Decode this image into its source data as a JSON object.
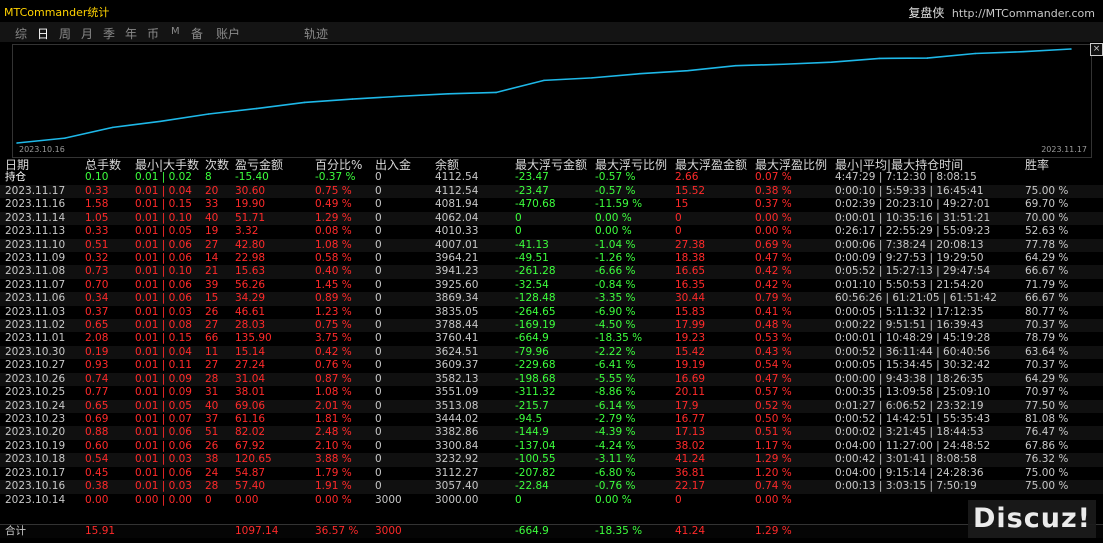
{
  "app_title": "MTCommander统计",
  "brand": {
    "cn": "复盘侠",
    "url": "http://MTCommander.com"
  },
  "tabs": [
    {
      "label": "综",
      "active": false
    },
    {
      "label": "日",
      "active": true
    },
    {
      "label": "周",
      "active": false
    },
    {
      "label": "月",
      "active": false
    },
    {
      "label": "季",
      "active": false
    },
    {
      "label": "年",
      "active": false
    },
    {
      "label": "币",
      "active": false
    },
    {
      "label": "M",
      "active": false
    },
    {
      "label": "备",
      "active": false
    },
    {
      "label": "账户",
      "active": false
    },
    {
      "label": "轨迹",
      "active": false
    }
  ],
  "chart_data": {
    "type": "line",
    "x_start": "2023.10.16",
    "x_end": "2023.11.17",
    "line_color": "#1eb8e8",
    "x": [
      "2023.10.16",
      "2023.10.17",
      "2023.10.18",
      "2023.10.19",
      "2023.10.20",
      "2023.10.23",
      "2023.10.24",
      "2023.10.25",
      "2023.10.26",
      "2023.10.27",
      "2023.10.30",
      "2023.11.01",
      "2023.11.02",
      "2023.11.03",
      "2023.11.06",
      "2023.11.07",
      "2023.11.08",
      "2023.11.09",
      "2023.11.10",
      "2023.11.13",
      "2023.11.14",
      "2023.11.16",
      "2023.11.17"
    ],
    "values": [
      3057.4,
      3112.27,
      3232.92,
      3300.84,
      3382.86,
      3444.02,
      3513.08,
      3551.09,
      3582.13,
      3609.37,
      3624.51,
      3760.41,
      3788.44,
      3835.05,
      3869.34,
      3925.6,
      3941.23,
      3964.21,
      4007.01,
      4010.33,
      4062.04,
      4081.94,
      4112.54
    ],
    "grid": false
  },
  "table": {
    "headers": [
      "日期",
      "总手数",
      "最小|大手数",
      "次数",
      "盈亏金额",
      "百分比%",
      "出入金",
      "余额",
      "最大浮亏金额",
      "最大浮亏比例",
      "最大浮盈金额",
      "最大浮盈比例",
      "最小|平均|最大持仓时间",
      "胜率"
    ],
    "holding": {
      "date": "持仓",
      "total": "0.10",
      "minmax": "0.01 | 0.02",
      "count": "8",
      "profit": "-15.40",
      "pct": "-0.37 %",
      "io": "0",
      "balance": "4112.54",
      "fl": "-23.47",
      "flp": "-0.57 %",
      "fp": "2.66",
      "fpp": "0.07 %",
      "time": "4:47:29 | 7:12:30 | 8:08:15",
      "win": ""
    },
    "rows": [
      {
        "date": "2023.11.17",
        "total": "0.33",
        "minmax": "0.01 | 0.04",
        "count": "20",
        "profit": "30.60",
        "pct": "0.75 %",
        "io": "0",
        "balance": "4112.54",
        "fl": "-23.47",
        "flp": "-0.57 %",
        "fp": "15.52",
        "fpp": "0.38 %",
        "time": "0:00:10 | 5:59:33 | 16:45:41",
        "win": "75.00 %"
      },
      {
        "date": "2023.11.16",
        "total": "1.58",
        "minmax": "0.01 | 0.15",
        "count": "33",
        "profit": "19.90",
        "pct": "0.49 %",
        "io": "0",
        "balance": "4081.94",
        "fl": "-470.68",
        "flp": "-11.59 %",
        "fp": "15",
        "fpp": "0.37 %",
        "time": "0:02:39 | 20:23:10 | 49:27:01",
        "win": "69.70 %"
      },
      {
        "date": "2023.11.14",
        "total": "1.05",
        "minmax": "0.01 | 0.10",
        "count": "40",
        "profit": "51.71",
        "pct": "1.29 %",
        "io": "0",
        "balance": "4062.04",
        "fl": "0",
        "flp": "0.00 %",
        "fp": "0",
        "fpp": "0.00 %",
        "time": "0:00:01 | 10:35:16 | 31:51:21",
        "win": "70.00 %"
      },
      {
        "date": "2023.11.13",
        "total": "0.33",
        "minmax": "0.01 | 0.05",
        "count": "19",
        "profit": "3.32",
        "pct": "0.08 %",
        "io": "0",
        "balance": "4010.33",
        "fl": "0",
        "flp": "0.00 %",
        "fp": "0",
        "fpp": "0.00 %",
        "time": "0:26:17 | 22:55:29 | 55:09:23",
        "win": "52.63 %"
      },
      {
        "date": "2023.11.10",
        "total": "0.51",
        "minmax": "0.01 | 0.06",
        "count": "27",
        "profit": "42.80",
        "pct": "1.08 %",
        "io": "0",
        "balance": "4007.01",
        "fl": "-41.13",
        "flp": "-1.04 %",
        "fp": "27.38",
        "fpp": "0.69 %",
        "time": "0:00:06 | 7:38:24 | 20:08:13",
        "win": "77.78 %"
      },
      {
        "date": "2023.11.09",
        "total": "0.32",
        "minmax": "0.01 | 0.06",
        "count": "14",
        "profit": "22.98",
        "pct": "0.58 %",
        "io": "0",
        "balance": "3964.21",
        "fl": "-49.51",
        "flp": "-1.26 %",
        "fp": "18.38",
        "fpp": "0.47 %",
        "time": "0:00:09 | 9:27:53 | 19:29:50",
        "win": "64.29 %"
      },
      {
        "date": "2023.11.08",
        "total": "0.73",
        "minmax": "0.01 | 0.10",
        "count": "21",
        "profit": "15.63",
        "pct": "0.40 %",
        "io": "0",
        "balance": "3941.23",
        "fl": "-261.28",
        "flp": "-6.66 %",
        "fp": "16.65",
        "fpp": "0.42 %",
        "time": "0:05:52 | 15:27:13 | 29:47:54",
        "win": "66.67 %"
      },
      {
        "date": "2023.11.07",
        "total": "0.70",
        "minmax": "0.01 | 0.06",
        "count": "39",
        "profit": "56.26",
        "pct": "1.45 %",
        "io": "0",
        "balance": "3925.60",
        "fl": "-32.54",
        "flp": "-0.84 %",
        "fp": "16.35",
        "fpp": "0.42 %",
        "time": "0:01:10 | 5:50:53 | 21:54:20",
        "win": "71.79 %"
      },
      {
        "date": "2023.11.06",
        "total": "0.34",
        "minmax": "0.01 | 0.06",
        "count": "15",
        "profit": "34.29",
        "pct": "0.89 %",
        "io": "0",
        "balance": "3869.34",
        "fl": "-128.48",
        "flp": "-3.35 %",
        "fp": "30.44",
        "fpp": "0.79 %",
        "time": "60:56:26 | 61:21:05 | 61:51:42",
        "win": "66.67 %"
      },
      {
        "date": "2023.11.03",
        "total": "0.37",
        "minmax": "0.01 | 0.03",
        "count": "26",
        "profit": "46.61",
        "pct": "1.23 %",
        "io": "0",
        "balance": "3835.05",
        "fl": "-264.65",
        "flp": "-6.90 %",
        "fp": "15.83",
        "fpp": "0.41 %",
        "time": "0:00:05 | 5:11:32 | 17:12:35",
        "win": "80.77 %"
      },
      {
        "date": "2023.11.02",
        "total": "0.65",
        "minmax": "0.01 | 0.08",
        "count": "27",
        "profit": "28.03",
        "pct": "0.75 %",
        "io": "0",
        "balance": "3788.44",
        "fl": "-169.19",
        "flp": "-4.50 %",
        "fp": "17.99",
        "fpp": "0.48 %",
        "time": "0:00:22 | 9:51:51 | 16:39:43",
        "win": "70.37 %"
      },
      {
        "date": "2023.11.01",
        "total": "2.08",
        "minmax": "0.01 | 0.15",
        "count": "66",
        "profit": "135.90",
        "pct": "3.75 %",
        "io": "0",
        "balance": "3760.41",
        "fl": "-664.9",
        "flp": "-18.35 %",
        "fp": "19.23",
        "fpp": "0.53 %",
        "time": "0:00:01 | 10:48:29 | 45:19:28",
        "win": "78.79 %"
      },
      {
        "date": "2023.10.30",
        "total": "0.19",
        "minmax": "0.01 | 0.04",
        "count": "11",
        "profit": "15.14",
        "pct": "0.42 %",
        "io": "0",
        "balance": "3624.51",
        "fl": "-79.96",
        "flp": "-2.22 %",
        "fp": "15.42",
        "fpp": "0.43 %",
        "time": "0:00:52 | 36:11:44 | 60:40:56",
        "win": "63.64 %"
      },
      {
        "date": "2023.10.27",
        "total": "0.93",
        "minmax": "0.01 | 0.11",
        "count": "27",
        "profit": "27.24",
        "pct": "0.76 %",
        "io": "0",
        "balance": "3609.37",
        "fl": "-229.68",
        "flp": "-6.41 %",
        "fp": "19.19",
        "fpp": "0.54 %",
        "time": "0:00:05 | 15:34:45 | 30:32:42",
        "win": "70.37 %"
      },
      {
        "date": "2023.10.26",
        "total": "0.74",
        "minmax": "0.01 | 0.09",
        "count": "28",
        "profit": "31.04",
        "pct": "0.87 %",
        "io": "0",
        "balance": "3582.13",
        "fl": "-198.68",
        "flp": "-5.55 %",
        "fp": "16.69",
        "fpp": "0.47 %",
        "time": "0:00:00 | 9:43:38 | 18:26:35",
        "win": "64.29 %"
      },
      {
        "date": "2023.10.25",
        "total": "0.77",
        "minmax": "0.01 | 0.09",
        "count": "31",
        "profit": "38.01",
        "pct": "1.08 %",
        "io": "0",
        "balance": "3551.09",
        "fl": "-311.32",
        "flp": "-8.86 %",
        "fp": "20.11",
        "fpp": "0.57 %",
        "time": "0:00:35 | 13:09:58 | 25:09:10",
        "win": "70.97 %"
      },
      {
        "date": "2023.10.24",
        "total": "0.65",
        "minmax": "0.01 | 0.05",
        "count": "40",
        "profit": "69.06",
        "pct": "2.01 %",
        "io": "0",
        "balance": "3513.08",
        "fl": "-215.7",
        "flp": "-6.14 %",
        "fp": "17.9",
        "fpp": "0.52 %",
        "time": "0:01:27 | 6:06:52 | 23:32:19",
        "win": "77.50 %"
      },
      {
        "date": "2023.10.23",
        "total": "0.69",
        "minmax": "0.01 | 0.07",
        "count": "37",
        "profit": "61.16",
        "pct": "1.81 %",
        "io": "0",
        "balance": "3444.02",
        "fl": "-94.5",
        "flp": "-2.79 %",
        "fp": "16.77",
        "fpp": "0.50 %",
        "time": "0:00:52 | 14:42:51 | 55:35:43",
        "win": "81.08 %"
      },
      {
        "date": "2023.10.20",
        "total": "0.88",
        "minmax": "0.01 | 0.06",
        "count": "51",
        "profit": "82.02",
        "pct": "2.48 %",
        "io": "0",
        "balance": "3382.86",
        "fl": "-144.9",
        "flp": "-4.39 %",
        "fp": "17.13",
        "fpp": "0.51 %",
        "time": "0:00:02 | 3:21:45 | 18:44:53",
        "win": "76.47 %"
      },
      {
        "date": "2023.10.19",
        "total": "0.60",
        "minmax": "0.01 | 0.06",
        "count": "26",
        "profit": "67.92",
        "pct": "2.10 %",
        "io": "0",
        "balance": "3300.84",
        "fl": "-137.04",
        "flp": "-4.24 %",
        "fp": "38.02",
        "fpp": "1.17 %",
        "time": "0:04:00 | 11:27:00 | 24:48:52",
        "win": "67.86 %"
      },
      {
        "date": "2023.10.18",
        "total": "0.54",
        "minmax": "0.01 | 0.03",
        "count": "38",
        "profit": "120.65",
        "pct": "3.88 %",
        "io": "0",
        "balance": "3232.92",
        "fl": "-100.55",
        "flp": "-3.11 %",
        "fp": "41.24",
        "fpp": "1.29 %",
        "time": "0:00:42 | 3:01:41 | 8:08:58",
        "win": "76.32 %"
      },
      {
        "date": "2023.10.17",
        "total": "0.45",
        "minmax": "0.01 | 0.06",
        "count": "24",
        "profit": "54.87",
        "pct": "1.79 %",
        "io": "0",
        "balance": "3112.27",
        "fl": "-207.82",
        "flp": "-6.80 %",
        "fp": "36.81",
        "fpp": "1.20 %",
        "time": "0:04:00 | 9:15:14 | 24:28:36",
        "win": "75.00 %"
      },
      {
        "date": "2023.10.16",
        "total": "0.38",
        "minmax": "0.01 | 0.03",
        "count": "28",
        "profit": "57.40",
        "pct": "1.91 %",
        "io": "0",
        "balance": "3057.40",
        "fl": "-22.84",
        "flp": "-0.76 %",
        "fp": "22.17",
        "fpp": "0.74 %",
        "time": "0:00:13 | 3:03:15 | 7:50:19",
        "win": "75.00 %"
      },
      {
        "date": "2023.10.14",
        "total": "0.00",
        "minmax": "0.00 | 0.00",
        "count": "0",
        "profit": "0.00",
        "pct": "0.00 %",
        "io": "3000",
        "balance": "3000.00",
        "fl": "0",
        "flp": "0.00 %",
        "fp": "0",
        "fpp": "0.00 %",
        "time": "",
        "win": ""
      }
    ],
    "total_row": {
      "date": "合计",
      "total": "15.91",
      "minmax": "",
      "count": "",
      "profit": "1097.14",
      "pct": "36.57 %",
      "io": "3000",
      "balance": "",
      "fl": "-664.9",
      "flp": "-18.35 %",
      "fp": "41.24",
      "fpp": "1.29 %",
      "time": "",
      "win": ""
    }
  },
  "watermark": "Discuz!"
}
